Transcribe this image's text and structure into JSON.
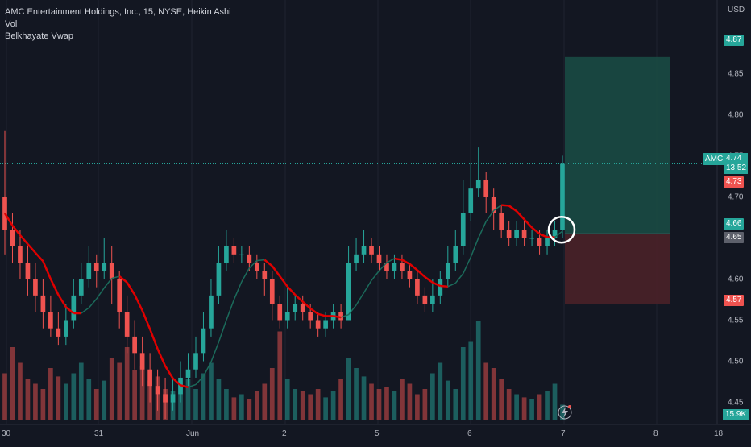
{
  "legend": {
    "symbol_line": "AMC Entertainment Holdings, Inc., 15, NYSE, Heikin Ashi",
    "indicator_vol": "Vol",
    "indicator_vwap": "Belkhayate Vwap"
  },
  "price_scale": {
    "currency": "USD",
    "ticks": [
      "4.85",
      "4.80",
      "4.75",
      "4.70",
      "4.65",
      "4.60",
      "4.55",
      "4.50",
      "4.45"
    ]
  },
  "badges": {
    "target": "4.87",
    "symbol_tag": "AMC",
    "last_price": "4.74",
    "countdown": "13:52",
    "prev_close": "4.73",
    "entry_green": "4.66",
    "entry_gray": "4.65",
    "stop": "4.57",
    "volume": "15.9K"
  },
  "time_axis": {
    "labels": [
      "30",
      "31",
      "Jun",
      "2",
      "5",
      "6",
      "7",
      "8",
      "18:"
    ]
  },
  "colors": {
    "background": "#131722",
    "up": "#26a69a",
    "down": "#ef5350",
    "vwap_red": "#e00000",
    "vwap_green": "#1b6b5b",
    "target_zone": "#1a4a44",
    "stop_zone": "#4a2128"
  },
  "chart_data": {
    "type": "candlestick",
    "style": "Heikin Ashi",
    "interval": "15",
    "ylim": [
      4.43,
      4.91
    ],
    "x_labels": [
      "30",
      "31",
      "Jun",
      "2",
      "5",
      "6",
      "7",
      "8",
      "18:"
    ],
    "long_position": {
      "target": 4.87,
      "entry": 4.655,
      "stop": 4.57
    },
    "last_price": 4.74,
    "candles": [
      {
        "o": 4.7,
        "c": 4.66,
        "h": 4.78,
        "l": 4.63
      },
      {
        "o": 4.66,
        "c": 4.64,
        "h": 4.68,
        "l": 4.62
      },
      {
        "o": 4.64,
        "c": 4.62,
        "h": 4.66,
        "l": 4.6
      },
      {
        "o": 4.62,
        "c": 4.6,
        "h": 4.64,
        "l": 4.58
      },
      {
        "o": 4.6,
        "c": 4.58,
        "h": 4.62,
        "l": 4.56
      },
      {
        "o": 4.58,
        "c": 4.56,
        "h": 4.6,
        "l": 4.54
      },
      {
        "o": 4.56,
        "c": 4.54,
        "h": 4.58,
        "l": 4.53
      },
      {
        "o": 4.54,
        "c": 4.53,
        "h": 4.56,
        "l": 4.52
      },
      {
        "o": 4.53,
        "c": 4.55,
        "h": 4.57,
        "l": 4.52
      },
      {
        "o": 4.55,
        "c": 4.58,
        "h": 4.6,
        "l": 4.54
      },
      {
        "o": 4.58,
        "c": 4.6,
        "h": 4.62,
        "l": 4.57
      },
      {
        "o": 4.6,
        "c": 4.62,
        "h": 4.64,
        "l": 4.59
      },
      {
        "o": 4.62,
        "c": 4.61,
        "h": 4.63,
        "l": 4.59
      },
      {
        "o": 4.61,
        "c": 4.62,
        "h": 4.65,
        "l": 4.6
      },
      {
        "o": 4.62,
        "c": 4.6,
        "h": 4.64,
        "l": 4.57
      },
      {
        "o": 4.6,
        "c": 4.56,
        "h": 4.61,
        "l": 4.54
      },
      {
        "o": 4.56,
        "c": 4.53,
        "h": 4.58,
        "l": 4.51
      },
      {
        "o": 4.53,
        "c": 4.51,
        "h": 4.55,
        "l": 4.49
      },
      {
        "o": 4.51,
        "c": 4.49,
        "h": 4.53,
        "l": 4.47
      },
      {
        "o": 4.49,
        "c": 4.47,
        "h": 4.51,
        "l": 4.45
      },
      {
        "o": 4.47,
        "c": 4.46,
        "h": 4.49,
        "l": 4.44
      },
      {
        "o": 4.46,
        "c": 4.45,
        "h": 4.48,
        "l": 4.43
      },
      {
        "o": 4.45,
        "c": 4.46,
        "h": 4.48,
        "l": 4.44
      },
      {
        "o": 4.46,
        "c": 4.48,
        "h": 4.5,
        "l": 4.45
      },
      {
        "o": 4.48,
        "c": 4.49,
        "h": 4.51,
        "l": 4.47
      },
      {
        "o": 4.49,
        "c": 4.51,
        "h": 4.53,
        "l": 4.48
      },
      {
        "o": 4.51,
        "c": 4.54,
        "h": 4.56,
        "l": 4.5
      },
      {
        "o": 4.54,
        "c": 4.58,
        "h": 4.6,
        "l": 4.53
      },
      {
        "o": 4.58,
        "c": 4.62,
        "h": 4.64,
        "l": 4.57
      },
      {
        "o": 4.62,
        "c": 4.64,
        "h": 4.66,
        "l": 4.61
      },
      {
        "o": 4.64,
        "c": 4.63,
        "h": 4.65,
        "l": 4.62
      },
      {
        "o": 4.63,
        "c": 4.63,
        "h": 4.64,
        "l": 4.62
      },
      {
        "o": 4.63,
        "c": 4.62,
        "h": 4.64,
        "l": 4.61
      },
      {
        "o": 4.62,
        "c": 4.61,
        "h": 4.63,
        "l": 4.6
      },
      {
        "o": 4.61,
        "c": 4.6,
        "h": 4.62,
        "l": 4.58
      },
      {
        "o": 4.6,
        "c": 4.57,
        "h": 4.61,
        "l": 4.55
      },
      {
        "o": 4.57,
        "c": 4.55,
        "h": 4.58,
        "l": 4.54
      },
      {
        "o": 4.55,
        "c": 4.56,
        "h": 4.59,
        "l": 4.54
      },
      {
        "o": 4.56,
        "c": 4.57,
        "h": 4.58,
        "l": 4.55
      },
      {
        "o": 4.57,
        "c": 4.56,
        "h": 4.58,
        "l": 4.55
      },
      {
        "o": 4.56,
        "c": 4.55,
        "h": 4.57,
        "l": 4.54
      },
      {
        "o": 4.55,
        "c": 4.54,
        "h": 4.56,
        "l": 4.53
      },
      {
        "o": 4.54,
        "c": 4.55,
        "h": 4.56,
        "l": 4.53
      },
      {
        "o": 4.55,
        "c": 4.56,
        "h": 4.57,
        "l": 4.54
      },
      {
        "o": 4.56,
        "c": 4.55,
        "h": 4.57,
        "l": 4.54
      },
      {
        "o": 4.55,
        "c": 4.62,
        "h": 4.64,
        "l": 4.55
      },
      {
        "o": 4.62,
        "c": 4.63,
        "h": 4.65,
        "l": 4.61
      },
      {
        "o": 4.63,
        "c": 4.64,
        "h": 4.66,
        "l": 4.62
      },
      {
        "o": 4.64,
        "c": 4.63,
        "h": 4.65,
        "l": 4.62
      },
      {
        "o": 4.63,
        "c": 4.62,
        "h": 4.64,
        "l": 4.61
      },
      {
        "o": 4.62,
        "c": 4.61,
        "h": 4.63,
        "l": 4.6
      },
      {
        "o": 4.61,
        "c": 4.62,
        "h": 4.63,
        "l": 4.6
      },
      {
        "o": 4.62,
        "c": 4.61,
        "h": 4.63,
        "l": 4.6
      },
      {
        "o": 4.61,
        "c": 4.6,
        "h": 4.62,
        "l": 4.59
      },
      {
        "o": 4.6,
        "c": 4.58,
        "h": 4.61,
        "l": 4.57
      },
      {
        "o": 4.58,
        "c": 4.57,
        "h": 4.59,
        "l": 4.56
      },
      {
        "o": 4.57,
        "c": 4.58,
        "h": 4.6,
        "l": 4.56
      },
      {
        "o": 4.58,
        "c": 4.6,
        "h": 4.61,
        "l": 4.57
      },
      {
        "o": 4.6,
        "c": 4.62,
        "h": 4.64,
        "l": 4.59
      },
      {
        "o": 4.62,
        "c": 4.64,
        "h": 4.66,
        "l": 4.61
      },
      {
        "o": 4.64,
        "c": 4.68,
        "h": 4.72,
        "l": 4.63
      },
      {
        "o": 4.68,
        "c": 4.71,
        "h": 4.74,
        "l": 4.67
      },
      {
        "o": 4.71,
        "c": 4.72,
        "h": 4.76,
        "l": 4.7
      },
      {
        "o": 4.72,
        "c": 4.7,
        "h": 4.73,
        "l": 4.68
      },
      {
        "o": 4.7,
        "c": 4.68,
        "h": 4.71,
        "l": 4.66
      },
      {
        "o": 4.68,
        "c": 4.66,
        "h": 4.69,
        "l": 4.65
      },
      {
        "o": 4.66,
        "c": 4.65,
        "h": 4.67,
        "l": 4.64
      },
      {
        "o": 4.65,
        "c": 4.66,
        "h": 4.67,
        "l": 4.64
      },
      {
        "o": 4.66,
        "c": 4.65,
        "h": 4.67,
        "l": 4.64
      },
      {
        "o": 4.65,
        "c": 4.65,
        "h": 4.66,
        "l": 4.64
      },
      {
        "o": 4.65,
        "c": 4.64,
        "h": 4.66,
        "l": 4.63
      },
      {
        "o": 4.64,
        "c": 4.65,
        "h": 4.66,
        "l": 4.63
      },
      {
        "o": 4.65,
        "c": 4.66,
        "h": 4.67,
        "l": 4.64
      },
      {
        "o": 4.66,
        "c": 4.74,
        "h": 4.75,
        "l": 4.65
      }
    ],
    "volume": [
      0.45,
      0.7,
      0.55,
      0.4,
      0.35,
      0.3,
      0.5,
      0.42,
      0.35,
      0.45,
      0.55,
      0.4,
      0.3,
      0.38,
      0.6,
      0.55,
      0.7,
      0.48,
      0.52,
      0.38,
      0.42,
      0.3,
      0.28,
      0.35,
      0.4,
      0.3,
      0.45,
      0.55,
      0.4,
      0.3,
      0.22,
      0.25,
      0.2,
      0.28,
      0.35,
      0.5,
      0.85,
      0.4,
      0.3,
      0.28,
      0.25,
      0.3,
      0.22,
      0.28,
      0.4,
      0.6,
      0.5,
      0.42,
      0.35,
      0.3,
      0.32,
      0.28,
      0.4,
      0.35,
      0.25,
      0.3,
      0.45,
      0.55,
      0.38,
      0.3,
      0.7,
      0.75,
      0.95,
      0.55,
      0.5,
      0.4,
      0.3,
      0.25,
      0.22,
      0.2,
      0.25,
      0.28,
      0.35,
      0.15
    ]
  }
}
